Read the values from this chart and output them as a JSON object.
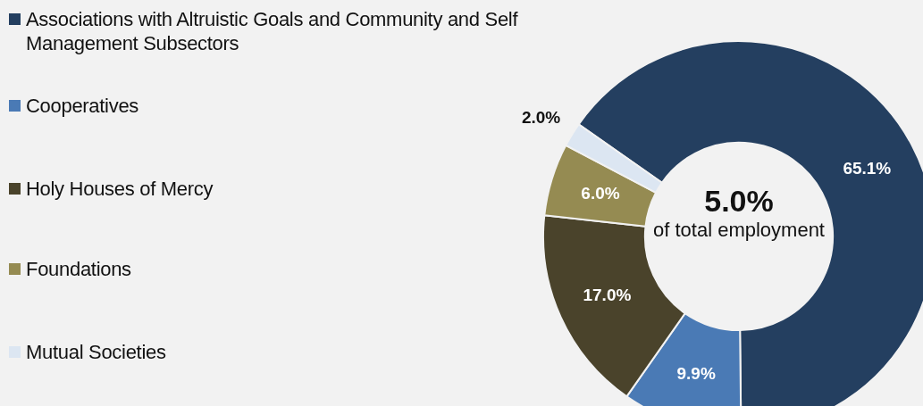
{
  "chart_data": {
    "type": "donut",
    "categories": [
      "Associations with Altruistic Goals and Community and Self Management Subsectors",
      "Cooperatives",
      "Holy Houses of Mercy",
      "Foundations",
      "Mutual Societies"
    ],
    "values": [
      65.1,
      9.9,
      17.0,
      6.0,
      2.0
    ],
    "colors": [
      "#243f60",
      "#4a7ab5",
      "#4a432b",
      "#958b52",
      "#dce6f2"
    ],
    "value_labels": [
      "65.1%",
      "9.9%",
      "17.0%",
      "6.0%",
      "2.0%"
    ],
    "annotations": [
      "5.0%",
      "of total employment"
    ],
    "legend": "left"
  }
}
